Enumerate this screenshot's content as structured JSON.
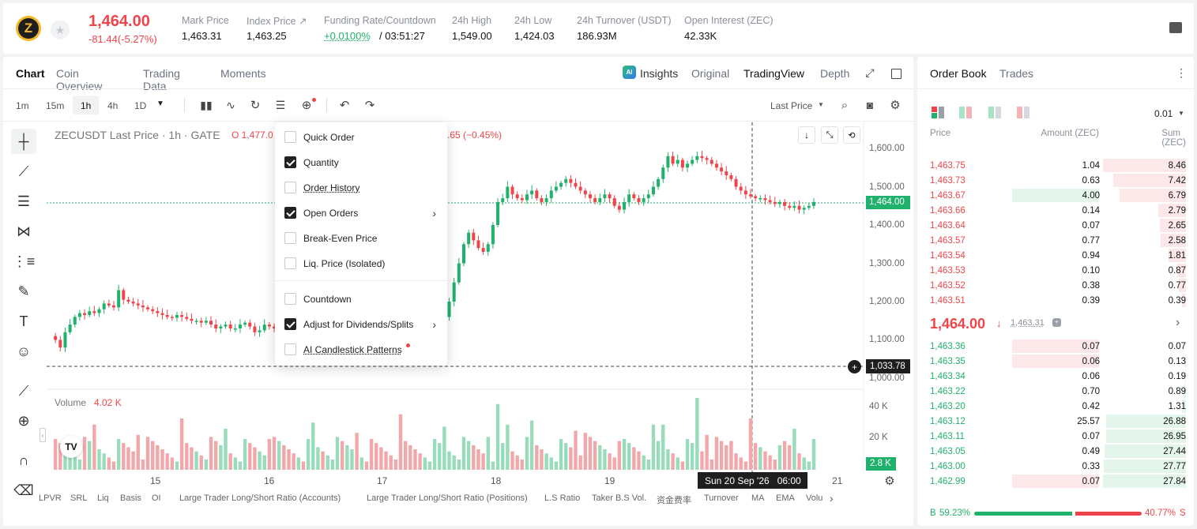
{
  "ticker": {
    "symbol_icon": "zec-coin-icon",
    "price": "1,464.00",
    "change": "-81.44(-5.27%)",
    "stats": [
      {
        "label": "Mark Price",
        "value": "1,463.31"
      },
      {
        "label": "Index Price ↗",
        "value": "1,463.25"
      },
      {
        "label": "Funding Rate/Countdown",
        "value_green": "+0.0100%",
        "value": "/ 03:51:27"
      },
      {
        "label": "24h High",
        "value": "1,549.00"
      },
      {
        "label": "24h Low",
        "value": "1,424.03"
      },
      {
        "label": "24h Turnover (USDT)",
        "value": "186.93M"
      },
      {
        "label": "Open Interest (ZEC)",
        "value": "42.33K"
      }
    ]
  },
  "chart_tabs": [
    "Chart",
    "Coin Overview",
    "Trading Data",
    "Moments"
  ],
  "view_tabs": {
    "insights": "Insights",
    "original": "Original",
    "tradingview": "TradingView",
    "depth": "Depth"
  },
  "timeframes": [
    "1m",
    "15m",
    "1h",
    "4h",
    "1D"
  ],
  "price_type": "Last Price",
  "legend": {
    "title": "ZECUSDT Last Price · 1h · GATE",
    "open": "O 1,477.0",
    "change": ".65 (−0.45%)"
  },
  "menu": [
    {
      "label": "Quick Order",
      "checked": false
    },
    {
      "label": "Quantity",
      "checked": true
    },
    {
      "label": "Order History",
      "checked": false
    },
    {
      "label": "Open Orders",
      "checked": true,
      "sub": true
    },
    {
      "label": "Break-Even Price",
      "checked": false
    },
    {
      "label": "Liq. Price (Isolated)",
      "checked": false
    },
    {
      "label": "Countdown",
      "checked": false
    },
    {
      "label": "Adjust for Dividends/Splits",
      "checked": true,
      "sub": true
    },
    {
      "label": "AI Candlestick Patterns",
      "checked": false
    }
  ],
  "price_axis": [
    "1,600.00",
    "1,500.00",
    "1,400.00",
    "1,300.00",
    "1,200.00",
    "1,100.00",
    "1,000.00"
  ],
  "current_price_tag": "1,464.00",
  "crosshair_price": "1,033.78",
  "volume": {
    "label": "Volume",
    "value": "4.02 K",
    "axis": [
      "40 K",
      "20 K"
    ],
    "tag": "2.8 K"
  },
  "time_axis": [
    "15",
    "16",
    "17",
    "18",
    "19",
    "21"
  ],
  "crosshair_time": "Sun 20 Sep '26   06:00",
  "indicators": [
    "LPVR",
    "SRL",
    "Liq",
    "Basis",
    "OI",
    "Large Trader Long/Short Ratio (Accounts)",
    "Large Trader Long/Short Ratio (Positions)",
    "L.S Ratio",
    "Taker B.S Vol.",
    "资金费率",
    "Turnover",
    "MA",
    "EMA",
    "Volu"
  ],
  "orderbook": {
    "tabs": [
      "Order Book",
      "Trades"
    ],
    "precision": "0.01",
    "headers": [
      "Price",
      "Amount (ZEC)",
      "Sum (ZEC)"
    ],
    "asks": [
      {
        "p": "1,463.75",
        "a": "1.04",
        "s": "8.46",
        "d": 1.0
      },
      {
        "p": "1,463.73",
        "a": "0.63",
        "s": "7.42",
        "d": 0.88
      },
      {
        "p": "1,463.67",
        "a": "4.00",
        "s": "6.79",
        "d": 0.8
      },
      {
        "p": "1,463.66",
        "a": "0.14",
        "s": "2.79",
        "d": 0.33
      },
      {
        "p": "1,463.64",
        "a": "0.07",
        "s": "2.65",
        "d": 0.31
      },
      {
        "p": "1,463.57",
        "a": "0.77",
        "s": "2.58",
        "d": 0.3
      },
      {
        "p": "1,463.54",
        "a": "0.94",
        "s": "1.81",
        "d": 0.21
      },
      {
        "p": "1,463.53",
        "a": "0.10",
        "s": "0.87",
        "d": 0.1
      },
      {
        "p": "1,463.52",
        "a": "0.38",
        "s": "0.77",
        "d": 0.09
      },
      {
        "p": "1,463.51",
        "a": "0.39",
        "s": "0.39",
        "d": 0.05
      }
    ],
    "mid": {
      "price": "1,464.00",
      "mark": "1,463.31"
    },
    "bids": [
      {
        "p": "1,463.36",
        "a": "0.07",
        "s": "0.07",
        "d": 0.0
      },
      {
        "p": "1,463.35",
        "a": "0.06",
        "s": "0.13",
        "d": 0.01
      },
      {
        "p": "1,463.34",
        "a": "0.06",
        "s": "0.19",
        "d": 0.01
      },
      {
        "p": "1,463.22",
        "a": "0.70",
        "s": "0.89",
        "d": 0.03
      },
      {
        "p": "1,463.20",
        "a": "0.42",
        "s": "1.31",
        "d": 0.05
      },
      {
        "p": "1,463.12",
        "a": "25.57",
        "s": "26.88",
        "d": 0.96
      },
      {
        "p": "1,463.11",
        "a": "0.07",
        "s": "26.95",
        "d": 0.96
      },
      {
        "p": "1,463.05",
        "a": "0.49",
        "s": "27.44",
        "d": 0.98
      },
      {
        "p": "1,463.00",
        "a": "0.33",
        "s": "27.77",
        "d": 0.99
      },
      {
        "p": "1,462.99",
        "a": "0.07",
        "s": "27.84",
        "d": 1.0
      }
    ],
    "buy_pct": "59.23%",
    "sell_pct": "40.77%",
    "buy_label": "B",
    "sell_label": "S",
    "buy_ratio": 0.5923
  }
}
